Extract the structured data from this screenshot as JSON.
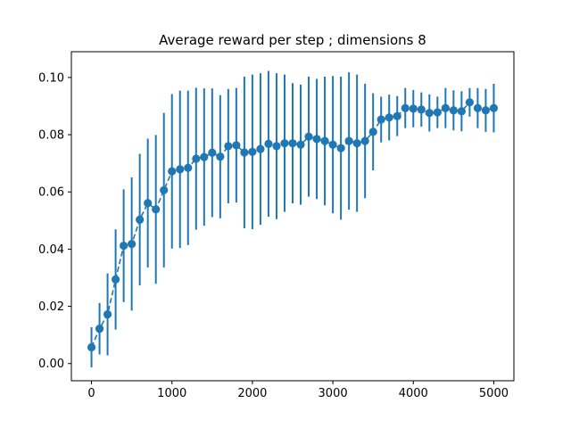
{
  "chart_data": {
    "type": "scatter",
    "title": "Average reward per step ; dimensions 8",
    "xlabel": "",
    "ylabel": "",
    "xlim": [
      -250,
      5250
    ],
    "ylim": [
      -0.006,
      0.109
    ],
    "x_ticks": [
      0,
      1000,
      2000,
      3000,
      4000,
      5000
    ],
    "x_tick_labels": [
      "0",
      "1000",
      "2000",
      "3000",
      "4000",
      "5000"
    ],
    "y_ticks": [
      0.0,
      0.02,
      0.04,
      0.06,
      0.08,
      0.1
    ],
    "y_tick_labels": [
      "0.00",
      "0.02",
      "0.04",
      "0.06",
      "0.08",
      "0.10"
    ],
    "grid": false,
    "legend": "none",
    "colors": {
      "series": "#1f77b4",
      "axis": "#000000",
      "background": "#ffffff"
    },
    "series": [
      {
        "style": "dashed-line-with-markers-and-errorbars",
        "x": [
          0,
          100,
          200,
          300,
          400,
          500,
          600,
          700,
          800,
          900,
          1000,
          1100,
          1200,
          1300,
          1400,
          1500,
          1600,
          1700,
          1800,
          1900,
          2000,
          2100,
          2200,
          2300,
          2400,
          2500,
          2600,
          2700,
          2800,
          2900,
          3000,
          3100,
          3200,
          3300,
          3400,
          3500,
          3600,
          3700,
          3800,
          3900,
          4000,
          4100,
          4200,
          4300,
          4400,
          4500,
          4600,
          4700,
          4800,
          4900,
          5000
        ],
        "y": [
          0.0057,
          0.0122,
          0.0172,
          0.0294,
          0.0412,
          0.0418,
          0.0503,
          0.0561,
          0.0539,
          0.0606,
          0.0672,
          0.0679,
          0.0684,
          0.0716,
          0.0722,
          0.0737,
          0.0723,
          0.076,
          0.0763,
          0.0738,
          0.074,
          0.075,
          0.0768,
          0.076,
          0.077,
          0.077,
          0.0765,
          0.0793,
          0.0785,
          0.0778,
          0.0765,
          0.0753,
          0.0778,
          0.077,
          0.0778,
          0.081,
          0.0853,
          0.086,
          0.0865,
          0.0893,
          0.0891,
          0.0888,
          0.0876,
          0.0878,
          0.0893,
          0.0885,
          0.0882,
          0.0913,
          0.0893,
          0.0885,
          0.0893
        ],
        "yerr": [
          0.007,
          0.009,
          0.0143,
          0.0175,
          0.0197,
          0.0233,
          0.023,
          0.0225,
          0.026,
          0.027,
          0.027,
          0.0275,
          0.027,
          0.0248,
          0.024,
          0.0225,
          0.0215,
          0.02,
          0.02,
          0.0265,
          0.027,
          0.0265,
          0.0255,
          0.0255,
          0.024,
          0.021,
          0.021,
          0.021,
          0.021,
          0.0225,
          0.024,
          0.025,
          0.024,
          0.024,
          0.02,
          0.0135,
          0.008,
          0.008,
          0.007,
          0.007,
          0.0065,
          0.006,
          0.0065,
          0.0055,
          0.007,
          0.007,
          0.007,
          0.005,
          0.007,
          0.0075,
          0.0085
        ]
      }
    ]
  }
}
